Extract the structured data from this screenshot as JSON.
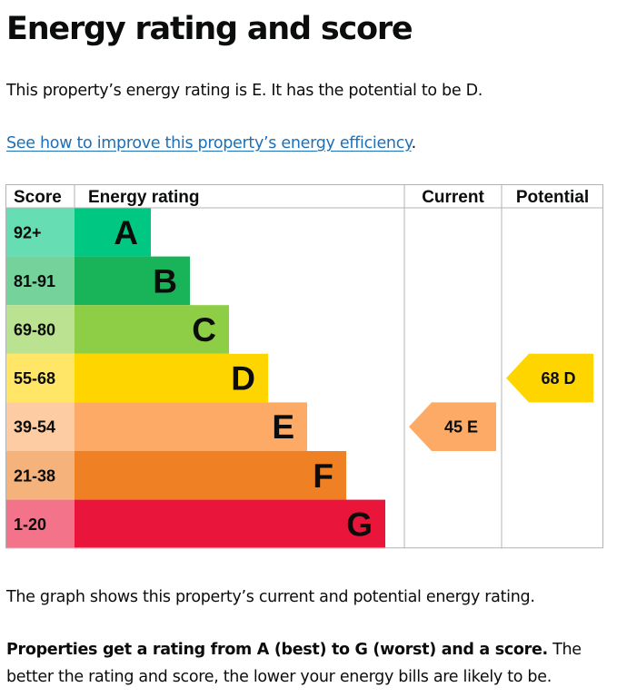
{
  "page": {
    "title": "Energy rating and score",
    "intro": "This property’s energy rating is E. It has the potential to be D.",
    "link_text": "See how to improve this property’s energy efficiency",
    "link_suffix": ".",
    "graph_caption": "The graph shows this property’s current and potential energy rating.",
    "summary_bold": "Properties get a rating from A (best) to G (worst) and a score.",
    "summary_rest": " The better the rating and score, the lower your energy bills are likely to be."
  },
  "chart_data": {
    "type": "bar",
    "columns": [
      "Score",
      "Energy rating",
      "Current",
      "Potential"
    ],
    "categories": [
      "A",
      "B",
      "C",
      "D",
      "E",
      "F",
      "G"
    ],
    "score_ranges": [
      "92+",
      "81-91",
      "69-80",
      "55-68",
      "39-54",
      "21-38",
      "1-20"
    ],
    "band_colors": [
      "#00c781",
      "#19b459",
      "#8dce46",
      "#ffd500",
      "#fcaa65",
      "#ef8023",
      "#e9153b"
    ],
    "score_colors": [
      "#66ddb3",
      "#75d29b",
      "#bbe290",
      "#ffe666",
      "#fdcca3",
      "#f5b37b",
      "#f2738a"
    ],
    "current": {
      "score": 45,
      "rating": "E",
      "color": "#fcaa65"
    },
    "potential": {
      "score": 68,
      "rating": "D",
      "color": "#ffd500"
    }
  }
}
